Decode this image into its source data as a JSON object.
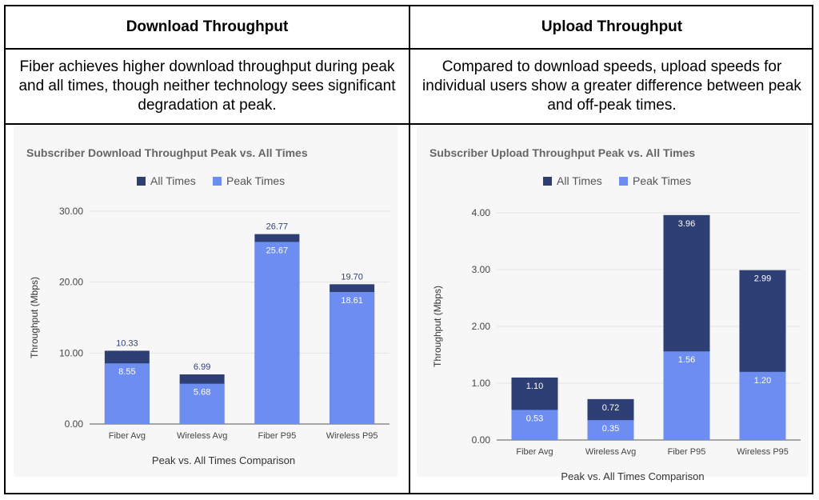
{
  "table": {
    "headers": [
      "Download Throughput",
      "Upload Throughput"
    ],
    "descriptions": [
      "Fiber achieves higher download throughput during peak and all times, though neither technology sees significant degradation at peak.",
      "Compared to download speeds, upload speeds for individual users show a greater difference between peak and off-peak times."
    ]
  },
  "colors": {
    "all_times": "#2e3f75",
    "peak_times": "#6d8ef0",
    "title": "#666666",
    "grid": "#e3e3e3",
    "axis": "#444444"
  },
  "chart_data": [
    {
      "type": "bar",
      "title": "Subscriber Download Throughput Peak vs. All Times",
      "xlabel": "Peak vs. All Times Comparison",
      "ylabel": "Throughput (Mbps)",
      "categories": [
        "Fiber Avg",
        "Wireless Avg",
        "Fiber P95",
        "Wireless P95"
      ],
      "series": [
        {
          "name": "All Times",
          "values": [
            10.33,
            6.99,
            26.77,
            19.7
          ],
          "labels": [
            "10.33",
            "6.99",
            "26.77",
            "19.70"
          ]
        },
        {
          "name": "Peak Times",
          "values": [
            8.55,
            5.68,
            25.67,
            18.61
          ],
          "labels": [
            "8.55",
            "5.68",
            "25.67",
            "18.61"
          ]
        }
      ],
      "ylim": [
        0,
        30
      ],
      "yticks": [
        0,
        10,
        20,
        30
      ],
      "ytick_labels": [
        "0.00",
        "10.00",
        "20.00",
        "30.00"
      ],
      "legend": "top",
      "grid": true
    },
    {
      "type": "bar",
      "title": "Subscriber Upload Throughput Peak vs. All Times",
      "xlabel": "Peak vs. All Times Comparison",
      "ylabel": "Throughput (Mbps)",
      "categories": [
        "Fiber Avg",
        "Wireless Avg",
        "Fiber P95",
        "Wireless P95"
      ],
      "series": [
        {
          "name": "All Times",
          "values": [
            1.1,
            0.72,
            3.96,
            2.99
          ],
          "labels": [
            "1.10",
            "0.72",
            "3.96",
            "2.99"
          ]
        },
        {
          "name": "Peak Times",
          "values": [
            0.53,
            0.35,
            1.56,
            1.2
          ],
          "labels": [
            "0.53",
            "0.35",
            "1.56",
            "1.20"
          ]
        }
      ],
      "ylim": [
        0,
        4
      ],
      "yticks": [
        0,
        1,
        2,
        3,
        4
      ],
      "ytick_labels": [
        "0.00",
        "1.00",
        "2.00",
        "3.00",
        "4.00"
      ],
      "legend": "top",
      "grid": true
    }
  ]
}
